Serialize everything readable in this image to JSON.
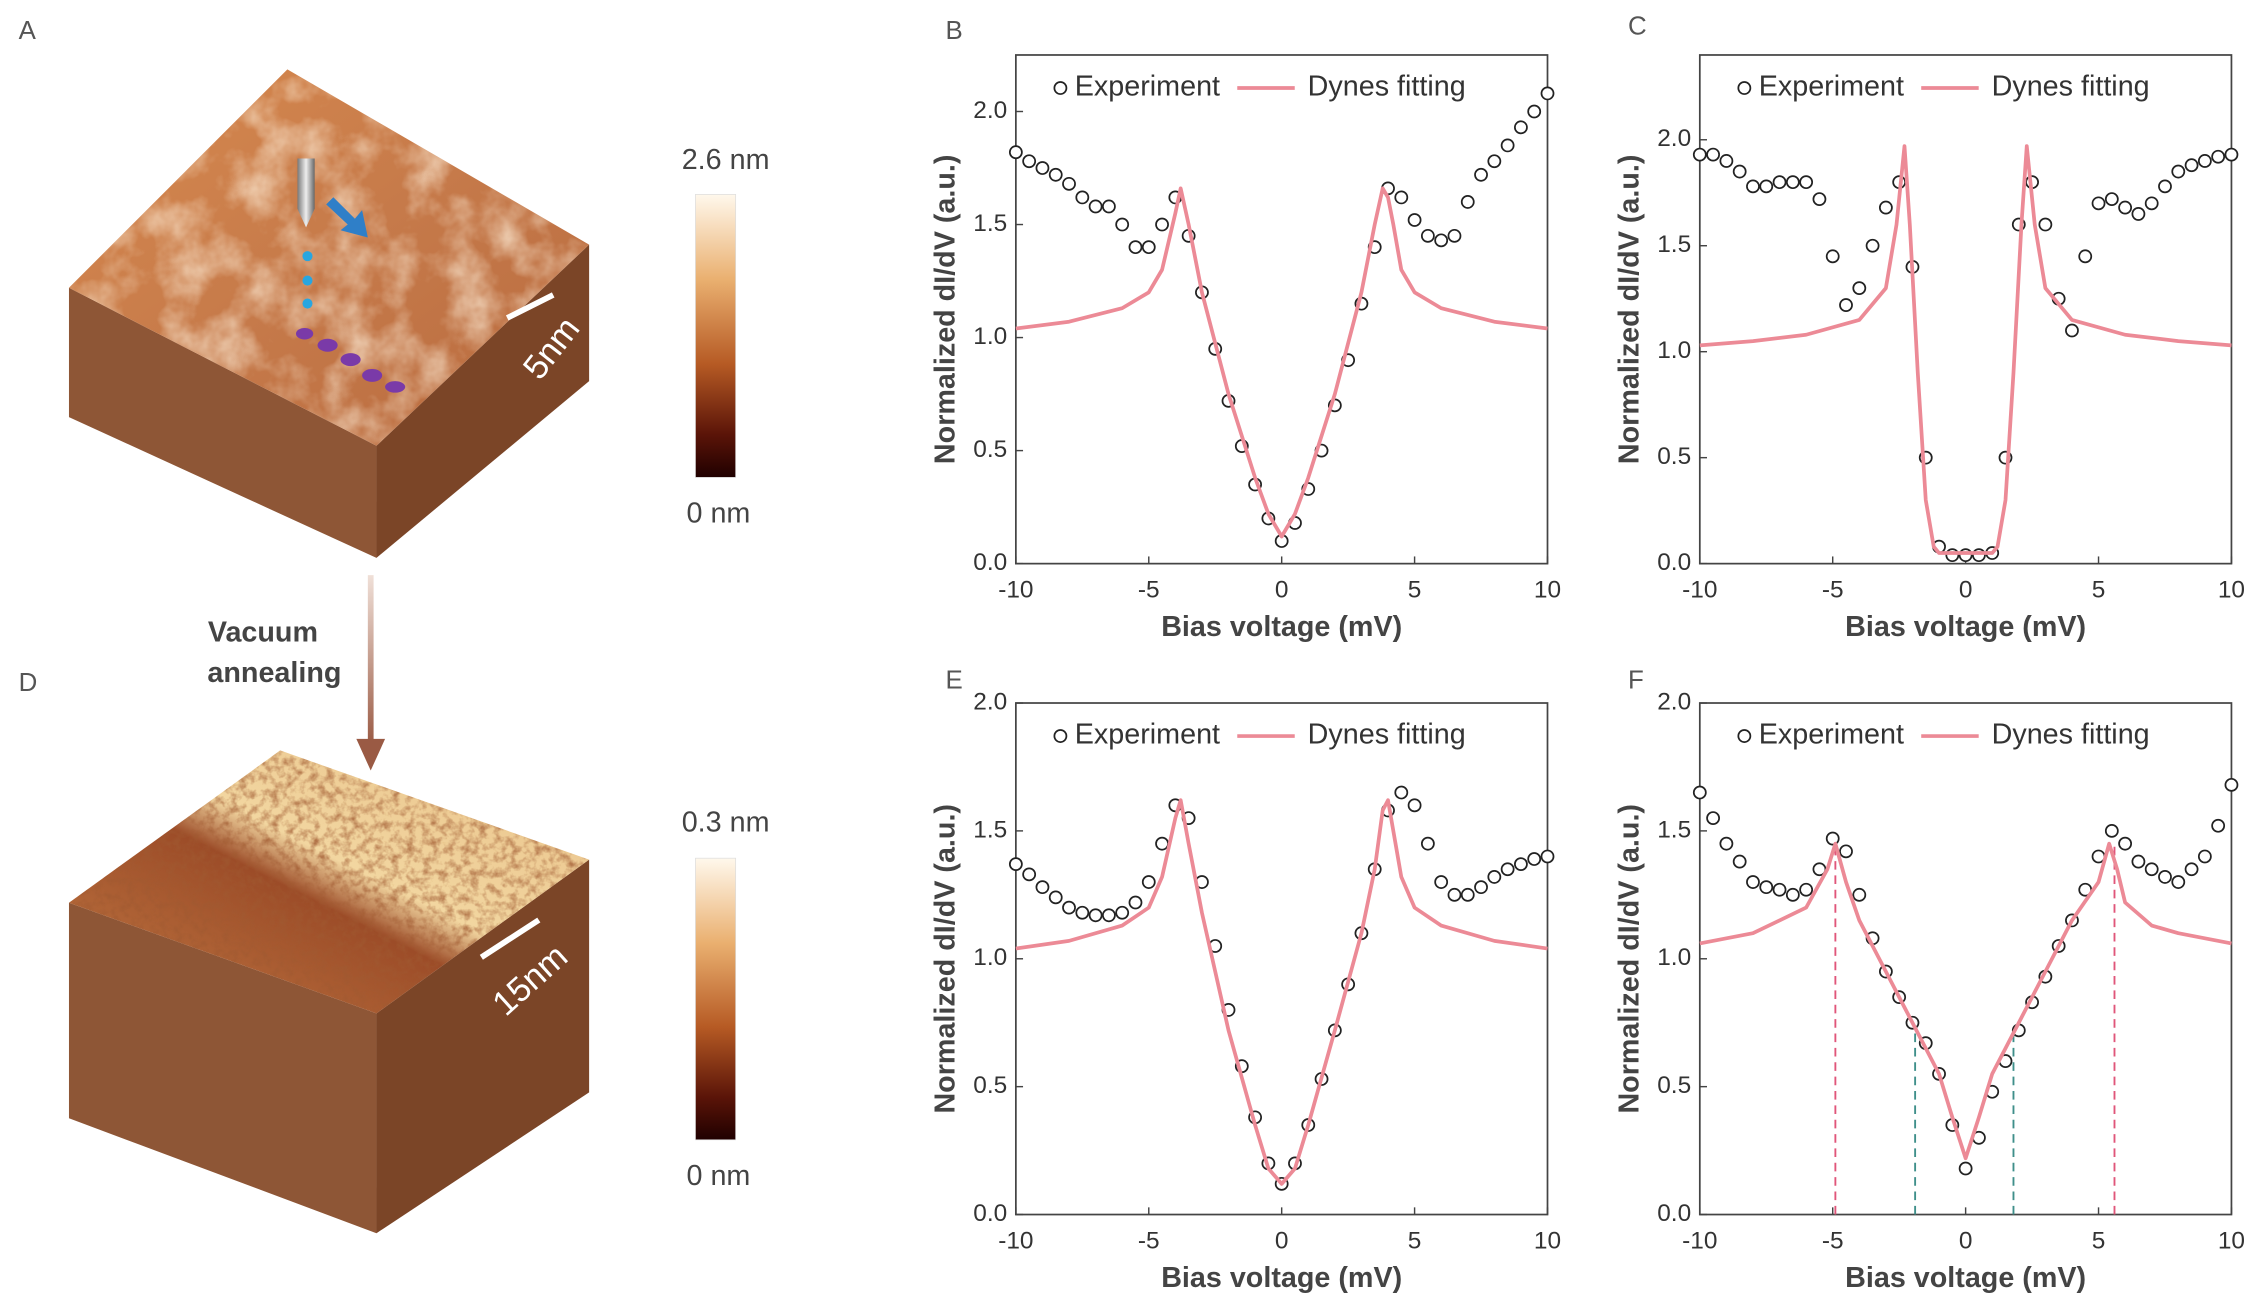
{
  "panel_labels": [
    "A",
    "B",
    "C",
    "D",
    "E",
    "F"
  ],
  "annealing_label": [
    "Vacuum",
    "annealing"
  ],
  "images": [
    {
      "colorbar_max": "2.6 nm",
      "colorbar_min": "0 nm",
      "scale_bar": "5nm"
    },
    {
      "colorbar_max": "0.3 nm",
      "colorbar_min": "0 nm",
      "scale_bar": "15nm"
    }
  ],
  "chart_data": [
    {
      "type": "line",
      "xlabel": "Bias voltage (mV)",
      "ylabel": "Normalized dI/dV (a.u.)",
      "xlim": [
        -10,
        10
      ],
      "ylim": [
        0,
        2.25
      ],
      "xticks": [
        -10,
        -5,
        0,
        5,
        10
      ],
      "yticks": [
        {
          "value": 0,
          "label": "0.0"
        },
        {
          "value": 0.5,
          "label": "0.5"
        },
        {
          "value": 1,
          "label": "1.0"
        },
        {
          "value": 1.5,
          "label": "1.5"
        },
        {
          "value": 2,
          "label": "2.0"
        }
      ],
      "legend": "upper center",
      "series": [
        {
          "name": "Experiment",
          "color": "#222222",
          "marker": "open-circle",
          "x": [
            -10,
            -9.5,
            -9,
            -8.5,
            -8,
            -7.5,
            -7,
            -6.5,
            -6,
            -5.5,
            -5,
            -4.5,
            -4,
            -3.5,
            -3,
            -2.5,
            -2,
            -1.5,
            -1,
            -0.5,
            0,
            0.5,
            1,
            1.5,
            2,
            2.5,
            3,
            3.5,
            4,
            4.5,
            5,
            5.5,
            6,
            6.5,
            7,
            7.5,
            8,
            8.5,
            9,
            9.5,
            10
          ],
          "values": [
            1.82,
            1.78,
            1.75,
            1.72,
            1.68,
            1.62,
            1.58,
            1.58,
            1.5,
            1.4,
            1.4,
            1.5,
            1.62,
            1.45,
            1.2,
            0.95,
            0.72,
            0.52,
            0.35,
            0.2,
            0.1,
            0.18,
            0.33,
            0.5,
            0.7,
            0.9,
            1.15,
            1.4,
            1.66,
            1.62,
            1.52,
            1.45,
            1.43,
            1.45,
            1.6,
            1.72,
            1.78,
            1.85,
            1.93,
            2.0,
            2.08
          ]
        },
        {
          "name": "Dynes fitting",
          "color": "#ec8a96",
          "marker": "none",
          "x": [
            -10,
            -8,
            -6,
            -5,
            -4.5,
            -4,
            -3.8,
            -3.5,
            -3,
            -2,
            -1,
            -0.5,
            0,
            0.5,
            1,
            2,
            3,
            3.5,
            3.8,
            4,
            4.2,
            4.5,
            5,
            6,
            8,
            10
          ],
          "values": [
            1.04,
            1.07,
            1.13,
            1.2,
            1.3,
            1.55,
            1.66,
            1.5,
            1.2,
            0.75,
            0.38,
            0.22,
            0.12,
            0.22,
            0.38,
            0.75,
            1.2,
            1.5,
            1.66,
            1.62,
            1.5,
            1.3,
            1.2,
            1.13,
            1.07,
            1.04
          ]
        }
      ]
    },
    {
      "type": "line",
      "xlabel": "Bias voltage (mV)",
      "ylabel": "Normalized dI/dV (a.u.)",
      "xlim": [
        -10,
        10
      ],
      "ylim": [
        0,
        2.4
      ],
      "xticks": [
        -10,
        -5,
        0,
        5,
        10
      ],
      "yticks": [
        {
          "value": 0,
          "label": "0.0"
        },
        {
          "value": 0.5,
          "label": "0.5"
        },
        {
          "value": 1,
          "label": "1.0"
        },
        {
          "value": 1.5,
          "label": "1.5"
        },
        {
          "value": 2,
          "label": "2.0"
        }
      ],
      "legend": "upper center",
      "series": [
        {
          "name": "Experiment",
          "color": "#222222",
          "marker": "open-circle",
          "x": [
            -10,
            -9.5,
            -9,
            -8.5,
            -8,
            -7.5,
            -7,
            -6.5,
            -6,
            -5.5,
            -5,
            -4.5,
            -4,
            -3.5,
            -3,
            -2.5,
            -2,
            -1.5,
            -1,
            -0.5,
            0,
            0.5,
            1,
            1.5,
            2,
            2.5,
            3,
            3.5,
            4,
            4.5,
            5,
            5.5,
            6,
            6.5,
            7,
            7.5,
            8,
            8.5,
            9,
            9.5,
            10
          ],
          "values": [
            1.93,
            1.93,
            1.9,
            1.85,
            1.78,
            1.78,
            1.8,
            1.8,
            1.8,
            1.72,
            1.45,
            1.22,
            1.3,
            1.5,
            1.68,
            1.8,
            1.4,
            0.5,
            0.08,
            0.04,
            0.04,
            0.04,
            0.05,
            0.5,
            1.6,
            1.8,
            1.6,
            1.25,
            1.1,
            1.45,
            1.7,
            1.72,
            1.68,
            1.65,
            1.7,
            1.78,
            1.85,
            1.88,
            1.9,
            1.92,
            1.93
          ]
        },
        {
          "name": "Dynes fitting",
          "color": "#ec8a96",
          "marker": "none",
          "x": [
            -10,
            -8,
            -6,
            -4,
            -3,
            -2.6,
            -2.3,
            -2.1,
            -1.8,
            -1.5,
            -1.2,
            -1,
            0,
            1,
            1.2,
            1.5,
            1.8,
            2.1,
            2.3,
            2.6,
            3,
            4,
            6,
            8,
            10
          ],
          "values": [
            1.03,
            1.05,
            1.08,
            1.15,
            1.3,
            1.6,
            1.97,
            1.6,
            0.9,
            0.3,
            0.08,
            0.05,
            0.05,
            0.05,
            0.08,
            0.3,
            0.9,
            1.6,
            1.97,
            1.6,
            1.3,
            1.15,
            1.08,
            1.05,
            1.03
          ]
        }
      ]
    },
    {
      "type": "line",
      "xlabel": "Bias voltage (mV)",
      "ylabel": "Normalized dI/dV (a.u.)",
      "xlim": [
        -10,
        10
      ],
      "ylim": [
        0,
        2
      ],
      "xticks": [
        -10,
        -5,
        0,
        5,
        10
      ],
      "yticks": [
        {
          "value": 0,
          "label": "0.0"
        },
        {
          "value": 0.5,
          "label": "0.5"
        },
        {
          "value": 1,
          "label": "1.0"
        },
        {
          "value": 1.5,
          "label": "1.5"
        },
        {
          "value": 2,
          "label": "2.0"
        }
      ],
      "legend": "upper center",
      "series": [
        {
          "name": "Experiment",
          "color": "#222222",
          "marker": "open-circle",
          "x": [
            -10,
            -9.5,
            -9,
            -8.5,
            -8,
            -7.5,
            -7,
            -6.5,
            -6,
            -5.5,
            -5,
            -4.5,
            -4,
            -3.5,
            -3,
            -2.5,
            -2,
            -1.5,
            -1,
            -0.5,
            0,
            0.5,
            1,
            1.5,
            2,
            2.5,
            3,
            3.5,
            4,
            4.5,
            5,
            5.5,
            6,
            6.5,
            7,
            7.5,
            8,
            8.5,
            9,
            9.5,
            10
          ],
          "values": [
            1.37,
            1.33,
            1.28,
            1.24,
            1.2,
            1.18,
            1.17,
            1.17,
            1.18,
            1.22,
            1.3,
            1.45,
            1.6,
            1.55,
            1.3,
            1.05,
            0.8,
            0.58,
            0.38,
            0.2,
            0.12,
            0.2,
            0.35,
            0.53,
            0.72,
            0.9,
            1.1,
            1.35,
            1.58,
            1.65,
            1.6,
            1.45,
            1.3,
            1.25,
            1.25,
            1.28,
            1.32,
            1.35,
            1.37,
            1.39,
            1.4
          ]
        },
        {
          "name": "Dynes fitting",
          "color": "#ec8a96",
          "marker": "none",
          "x": [
            -10,
            -8,
            -6,
            -5,
            -4.5,
            -4,
            -3.8,
            -3.5,
            -3,
            -2,
            -1,
            -0.5,
            0,
            0.5,
            1,
            2,
            3,
            3.5,
            3.8,
            4,
            4.2,
            4.5,
            5,
            6,
            8,
            10
          ],
          "values": [
            1.04,
            1.07,
            1.13,
            1.2,
            1.32,
            1.55,
            1.62,
            1.45,
            1.18,
            0.72,
            0.35,
            0.18,
            0.12,
            0.18,
            0.35,
            0.72,
            1.1,
            1.35,
            1.58,
            1.62,
            1.5,
            1.32,
            1.2,
            1.13,
            1.07,
            1.04
          ]
        }
      ]
    },
    {
      "type": "line",
      "xlabel": "Bias voltage (mV)",
      "ylabel": "Normalized dI/dV (a.u.)",
      "xlim": [
        -10,
        10
      ],
      "ylim": [
        0,
        2
      ],
      "xticks": [
        -10,
        -5,
        0,
        5,
        10
      ],
      "yticks": [
        {
          "value": 0,
          "label": "0.0"
        },
        {
          "value": 0.5,
          "label": "0.5"
        },
        {
          "value": 1,
          "label": "1.0"
        },
        {
          "value": 1.5,
          "label": "1.5"
        },
        {
          "value": 2,
          "label": "2.0"
        }
      ],
      "legend": "upper center",
      "reference_lines": [
        {
          "x": -4.9,
          "y": 1.45,
          "color": "#e0567a"
        },
        {
          "x": -1.9,
          "y": 0.72,
          "color": "#3f8f8a"
        },
        {
          "x": 1.8,
          "y": 0.72,
          "color": "#3f8f8a"
        },
        {
          "x": 5.6,
          "y": 1.45,
          "color": "#e0567a"
        }
      ],
      "series": [
        {
          "name": "Experiment",
          "color": "#222222",
          "marker": "open-circle",
          "x": [
            -10,
            -9.5,
            -9,
            -8.5,
            -8,
            -7.5,
            -7,
            -6.5,
            -6,
            -5.5,
            -5,
            -4.5,
            -4,
            -3.5,
            -3,
            -2.5,
            -2,
            -1.5,
            -1,
            -0.5,
            0,
            0.5,
            1,
            1.5,
            2,
            2.5,
            3,
            3.5,
            4,
            4.5,
            5,
            5.5,
            6,
            6.5,
            7,
            7.5,
            8,
            8.5,
            9,
            9.5,
            10
          ],
          "values": [
            1.65,
            1.55,
            1.45,
            1.38,
            1.3,
            1.28,
            1.27,
            1.25,
            1.27,
            1.35,
            1.47,
            1.42,
            1.25,
            1.08,
            0.95,
            0.85,
            0.75,
            0.67,
            0.55,
            0.35,
            0.18,
            0.3,
            0.48,
            0.6,
            0.72,
            0.83,
            0.93,
            1.05,
            1.15,
            1.27,
            1.4,
            1.5,
            1.45,
            1.38,
            1.35,
            1.32,
            1.3,
            1.35,
            1.4,
            1.52,
            1.68
          ]
        },
        {
          "name": "Dynes fitting",
          "color": "#ec8a96",
          "marker": "none",
          "x": [
            -10,
            -8,
            -6,
            -5.2,
            -4.9,
            -4.5,
            -4,
            -3,
            -2,
            -1,
            -0.5,
            0,
            0.5,
            1,
            2,
            3,
            4,
            5,
            5.4,
            5.7,
            6,
            7,
            8,
            10
          ],
          "values": [
            1.06,
            1.1,
            1.2,
            1.35,
            1.45,
            1.3,
            1.15,
            0.95,
            0.75,
            0.55,
            0.38,
            0.22,
            0.38,
            0.55,
            0.75,
            0.95,
            1.15,
            1.3,
            1.45,
            1.35,
            1.22,
            1.13,
            1.1,
            1.06
          ]
        }
      ]
    }
  ]
}
